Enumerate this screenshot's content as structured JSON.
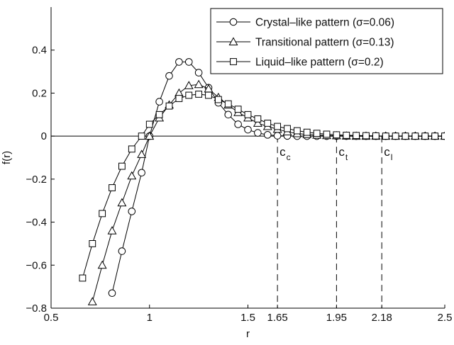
{
  "chart_data": {
    "type": "line",
    "xlabel": "r",
    "ylabel": "f(r)",
    "xlim": [
      0.5,
      2.5
    ],
    "ylim": [
      -0.8,
      0.6
    ],
    "grid": false,
    "legend_position": "top-right",
    "x_ticks": [
      {
        "value": 0.5,
        "label": "0.5"
      },
      {
        "value": 1,
        "label": "1"
      },
      {
        "value": 1.5,
        "label": "1.5"
      },
      {
        "value": 1.65,
        "label": "1.65"
      },
      {
        "value": 1.95,
        "label": "1.95"
      },
      {
        "value": 2.18,
        "label": "2.18"
      },
      {
        "value": 2.5,
        "label": "2.5"
      }
    ],
    "y_ticks": [
      {
        "value": -0.8,
        "label": "−0.8"
      },
      {
        "value": -0.6,
        "label": "−0.6"
      },
      {
        "value": -0.4,
        "label": "−0.4"
      },
      {
        "value": -0.2,
        "label": "−0.2"
      },
      {
        "value": 0,
        "label": "0"
      },
      {
        "value": 0.2,
        "label": "0.2"
      },
      {
        "value": 0.4,
        "label": "0.4"
      }
    ],
    "series": [
      {
        "name": "Crystal–like pattern (σ=0.06)",
        "marker": "circle",
        "x": [
          0.81,
          0.86,
          0.91,
          0.96,
          1.0,
          1.05,
          1.1,
          1.15,
          1.2,
          1.25,
          1.3,
          1.35,
          1.4,
          1.45,
          1.5,
          1.55,
          1.6,
          1.65,
          1.7,
          1.75,
          1.8,
          1.85,
          1.9,
          1.95,
          2.0,
          2.05,
          2.1,
          2.15,
          2.2,
          2.25,
          2.3,
          2.35,
          2.4,
          2.45,
          2.5
        ],
        "y": [
          -0.73,
          -0.535,
          -0.35,
          -0.17,
          0.0,
          0.16,
          0.28,
          0.345,
          0.345,
          0.295,
          0.225,
          0.155,
          0.1,
          0.055,
          0.03,
          0.015,
          0.006,
          0.002,
          0.001,
          0.0,
          0.0,
          0.0,
          0.0,
          0.0,
          0.0,
          0.0,
          0.0,
          0.0,
          0.0,
          0.0,
          0.0,
          0.0,
          0.0,
          0.0,
          0.0
        ]
      },
      {
        "name": "Transitional pattern (σ=0.13)",
        "marker": "triangle",
        "x": [
          0.71,
          0.76,
          0.81,
          0.86,
          0.91,
          0.96,
          1.0,
          1.05,
          1.1,
          1.15,
          1.2,
          1.25,
          1.3,
          1.35,
          1.4,
          1.45,
          1.5,
          1.55,
          1.6,
          1.65,
          1.7,
          1.75,
          1.8,
          1.85,
          1.9,
          1.95,
          2.0,
          2.05,
          2.1,
          2.15,
          2.2,
          2.25,
          2.3,
          2.35,
          2.4,
          2.45,
          2.5
        ],
        "y": [
          -0.77,
          -0.6,
          -0.44,
          -0.31,
          -0.185,
          -0.085,
          0.0,
          0.085,
          0.145,
          0.2,
          0.235,
          0.24,
          0.22,
          0.18,
          0.145,
          0.11,
          0.085,
          0.06,
          0.045,
          0.032,
          0.02,
          0.012,
          0.008,
          0.005,
          0.003,
          0.002,
          0.001,
          0.0,
          0.0,
          0.0,
          0.0,
          0.0,
          0.0,
          0.0,
          0.0,
          0.0,
          0.0
        ]
      },
      {
        "name": "Liquid–like pattern (σ=0.2)",
        "marker": "square",
        "x": [
          0.66,
          0.71,
          0.76,
          0.81,
          0.86,
          0.91,
          0.96,
          1.0,
          1.05,
          1.1,
          1.15,
          1.2,
          1.25,
          1.3,
          1.35,
          1.4,
          1.45,
          1.5,
          1.55,
          1.6,
          1.65,
          1.7,
          1.75,
          1.8,
          1.85,
          1.9,
          1.95,
          2.0,
          2.05,
          2.1,
          2.15,
          2.2,
          2.25,
          2.3,
          2.35,
          2.4,
          2.45,
          2.5
        ],
        "y": [
          -0.66,
          -0.5,
          -0.36,
          -0.24,
          -0.14,
          -0.06,
          0.0,
          0.055,
          0.1,
          0.14,
          0.175,
          0.19,
          0.195,
          0.19,
          0.17,
          0.15,
          0.125,
          0.1,
          0.08,
          0.06,
          0.045,
          0.035,
          0.025,
          0.018,
          0.013,
          0.009,
          0.006,
          0.004,
          0.003,
          0.002,
          0.001,
          0.0,
          0.0,
          0.0,
          0.0,
          0.0,
          0.0,
          0.0
        ]
      }
    ],
    "vertical_markers": [
      {
        "x": 1.65,
        "label": "c",
        "sub": "c"
      },
      {
        "x": 1.95,
        "label": "c",
        "sub": "t"
      },
      {
        "x": 2.18,
        "label": "c",
        "sub": "l"
      }
    ],
    "colors": {
      "line": "#000000",
      "axes": "#000000",
      "background": "#ffffff"
    }
  }
}
